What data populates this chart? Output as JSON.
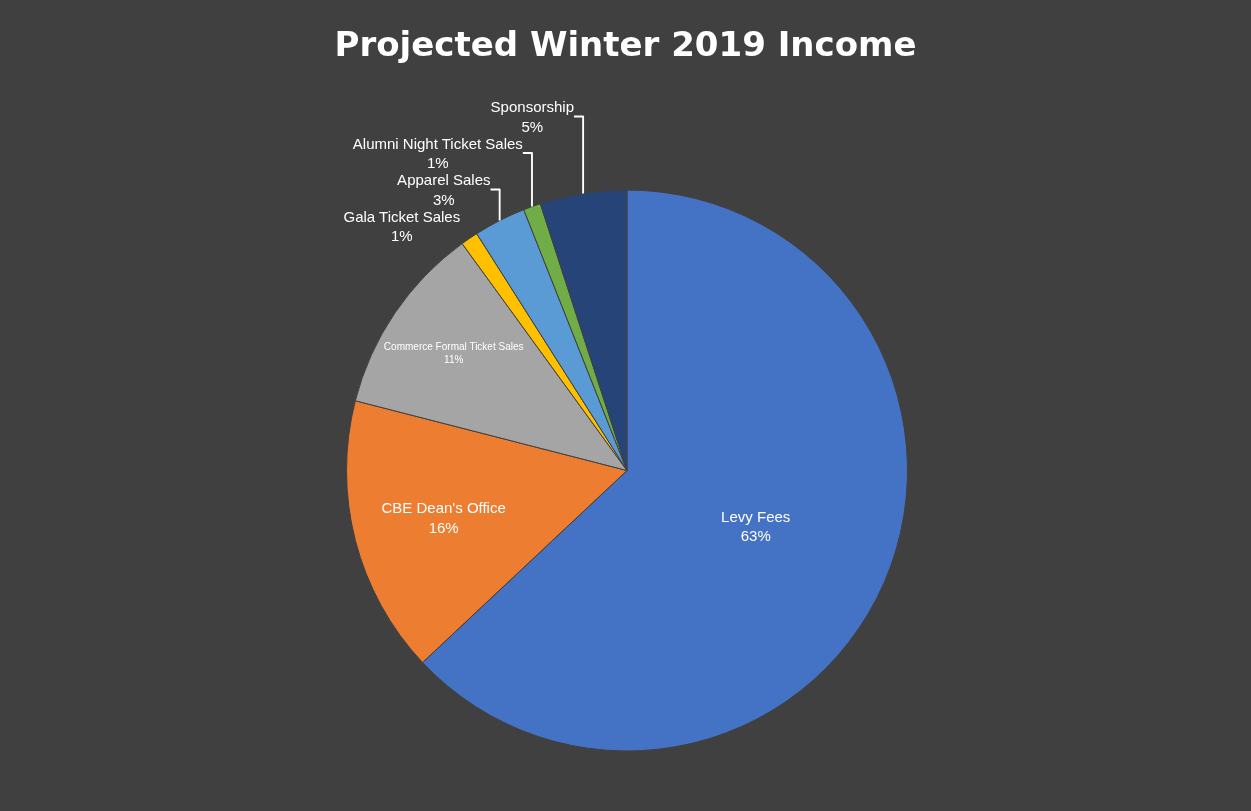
{
  "chart_data": {
    "type": "pie",
    "title": "Projected Winter 2019 Income",
    "categories": [
      "Levy Fees",
      "CBE Dean's Office",
      "Commerce Formal Ticket Sales",
      "Gala Ticket Sales",
      "Apparel Sales",
      "Alumni Night Ticket Sales",
      "Sponsorship"
    ],
    "values": [
      63,
      16,
      11,
      1,
      3,
      1,
      5
    ],
    "value_labels": [
      "63%",
      "16%",
      "11%",
      "1%",
      "3%",
      "1%",
      "5%"
    ],
    "colors": [
      "#4472c4",
      "#ed7d31",
      "#a5a5a5",
      "#ffc000",
      "#5b9bd5",
      "#70ad47",
      "#264478"
    ],
    "legend": false
  }
}
